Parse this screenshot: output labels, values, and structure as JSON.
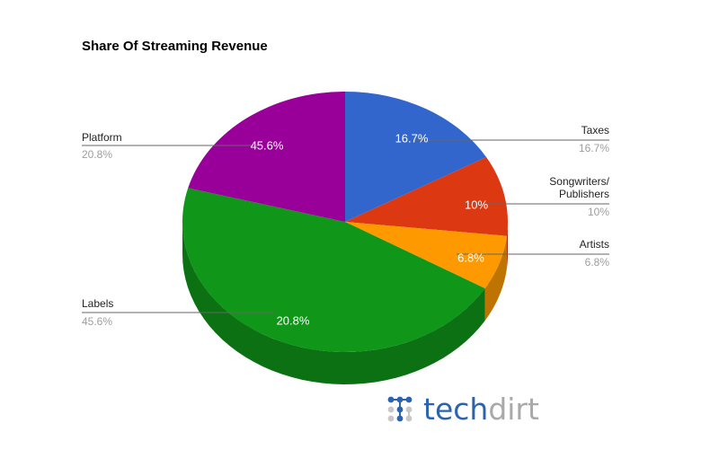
{
  "chart_data": {
    "type": "pie",
    "title": "Share Of Streaming Revenue",
    "style": "3d",
    "start_angle_deg": 0,
    "direction": "clockwise",
    "slices": [
      {
        "label": "Taxes",
        "value": 16.7,
        "display": "16.7%",
        "color": "#3366cc",
        "side_color": "#264d99"
      },
      {
        "label": "Songwriters/ Publishers",
        "value": 10,
        "display": "10%",
        "color": "#dc3912",
        "side_color": "#a52b0e"
      },
      {
        "label": "Artists",
        "value": 6.8,
        "display": "6.8%",
        "color": "#ff9900",
        "side_color": "#bf7300"
      },
      {
        "label": "Labels",
        "value": 45.6,
        "display": "45.6%",
        "color": "#109618",
        "side_color": "#0c7112"
      },
      {
        "label": "Platform",
        "value": 20.8,
        "display": "20.8%",
        "color": "#990099",
        "side_color": "#730073"
      }
    ],
    "legend_position": "labeled"
  },
  "labels": {
    "taxes": {
      "name": "Taxes",
      "value": "16.7%"
    },
    "songwriters": {
      "name_line1": "Songwriters/",
      "name_line2": "Publishers",
      "value": "10%"
    },
    "artists": {
      "name": "Artists",
      "value": "6.8%"
    },
    "labels": {
      "name": "Labels",
      "value": "45.6%"
    },
    "platform": {
      "name": "Platform",
      "value": "20.8%"
    }
  },
  "logo": {
    "part1": "tech",
    "part2": "dirt",
    "dot_blue": "#2b64ae",
    "dot_gray": "#c8c8c8"
  }
}
